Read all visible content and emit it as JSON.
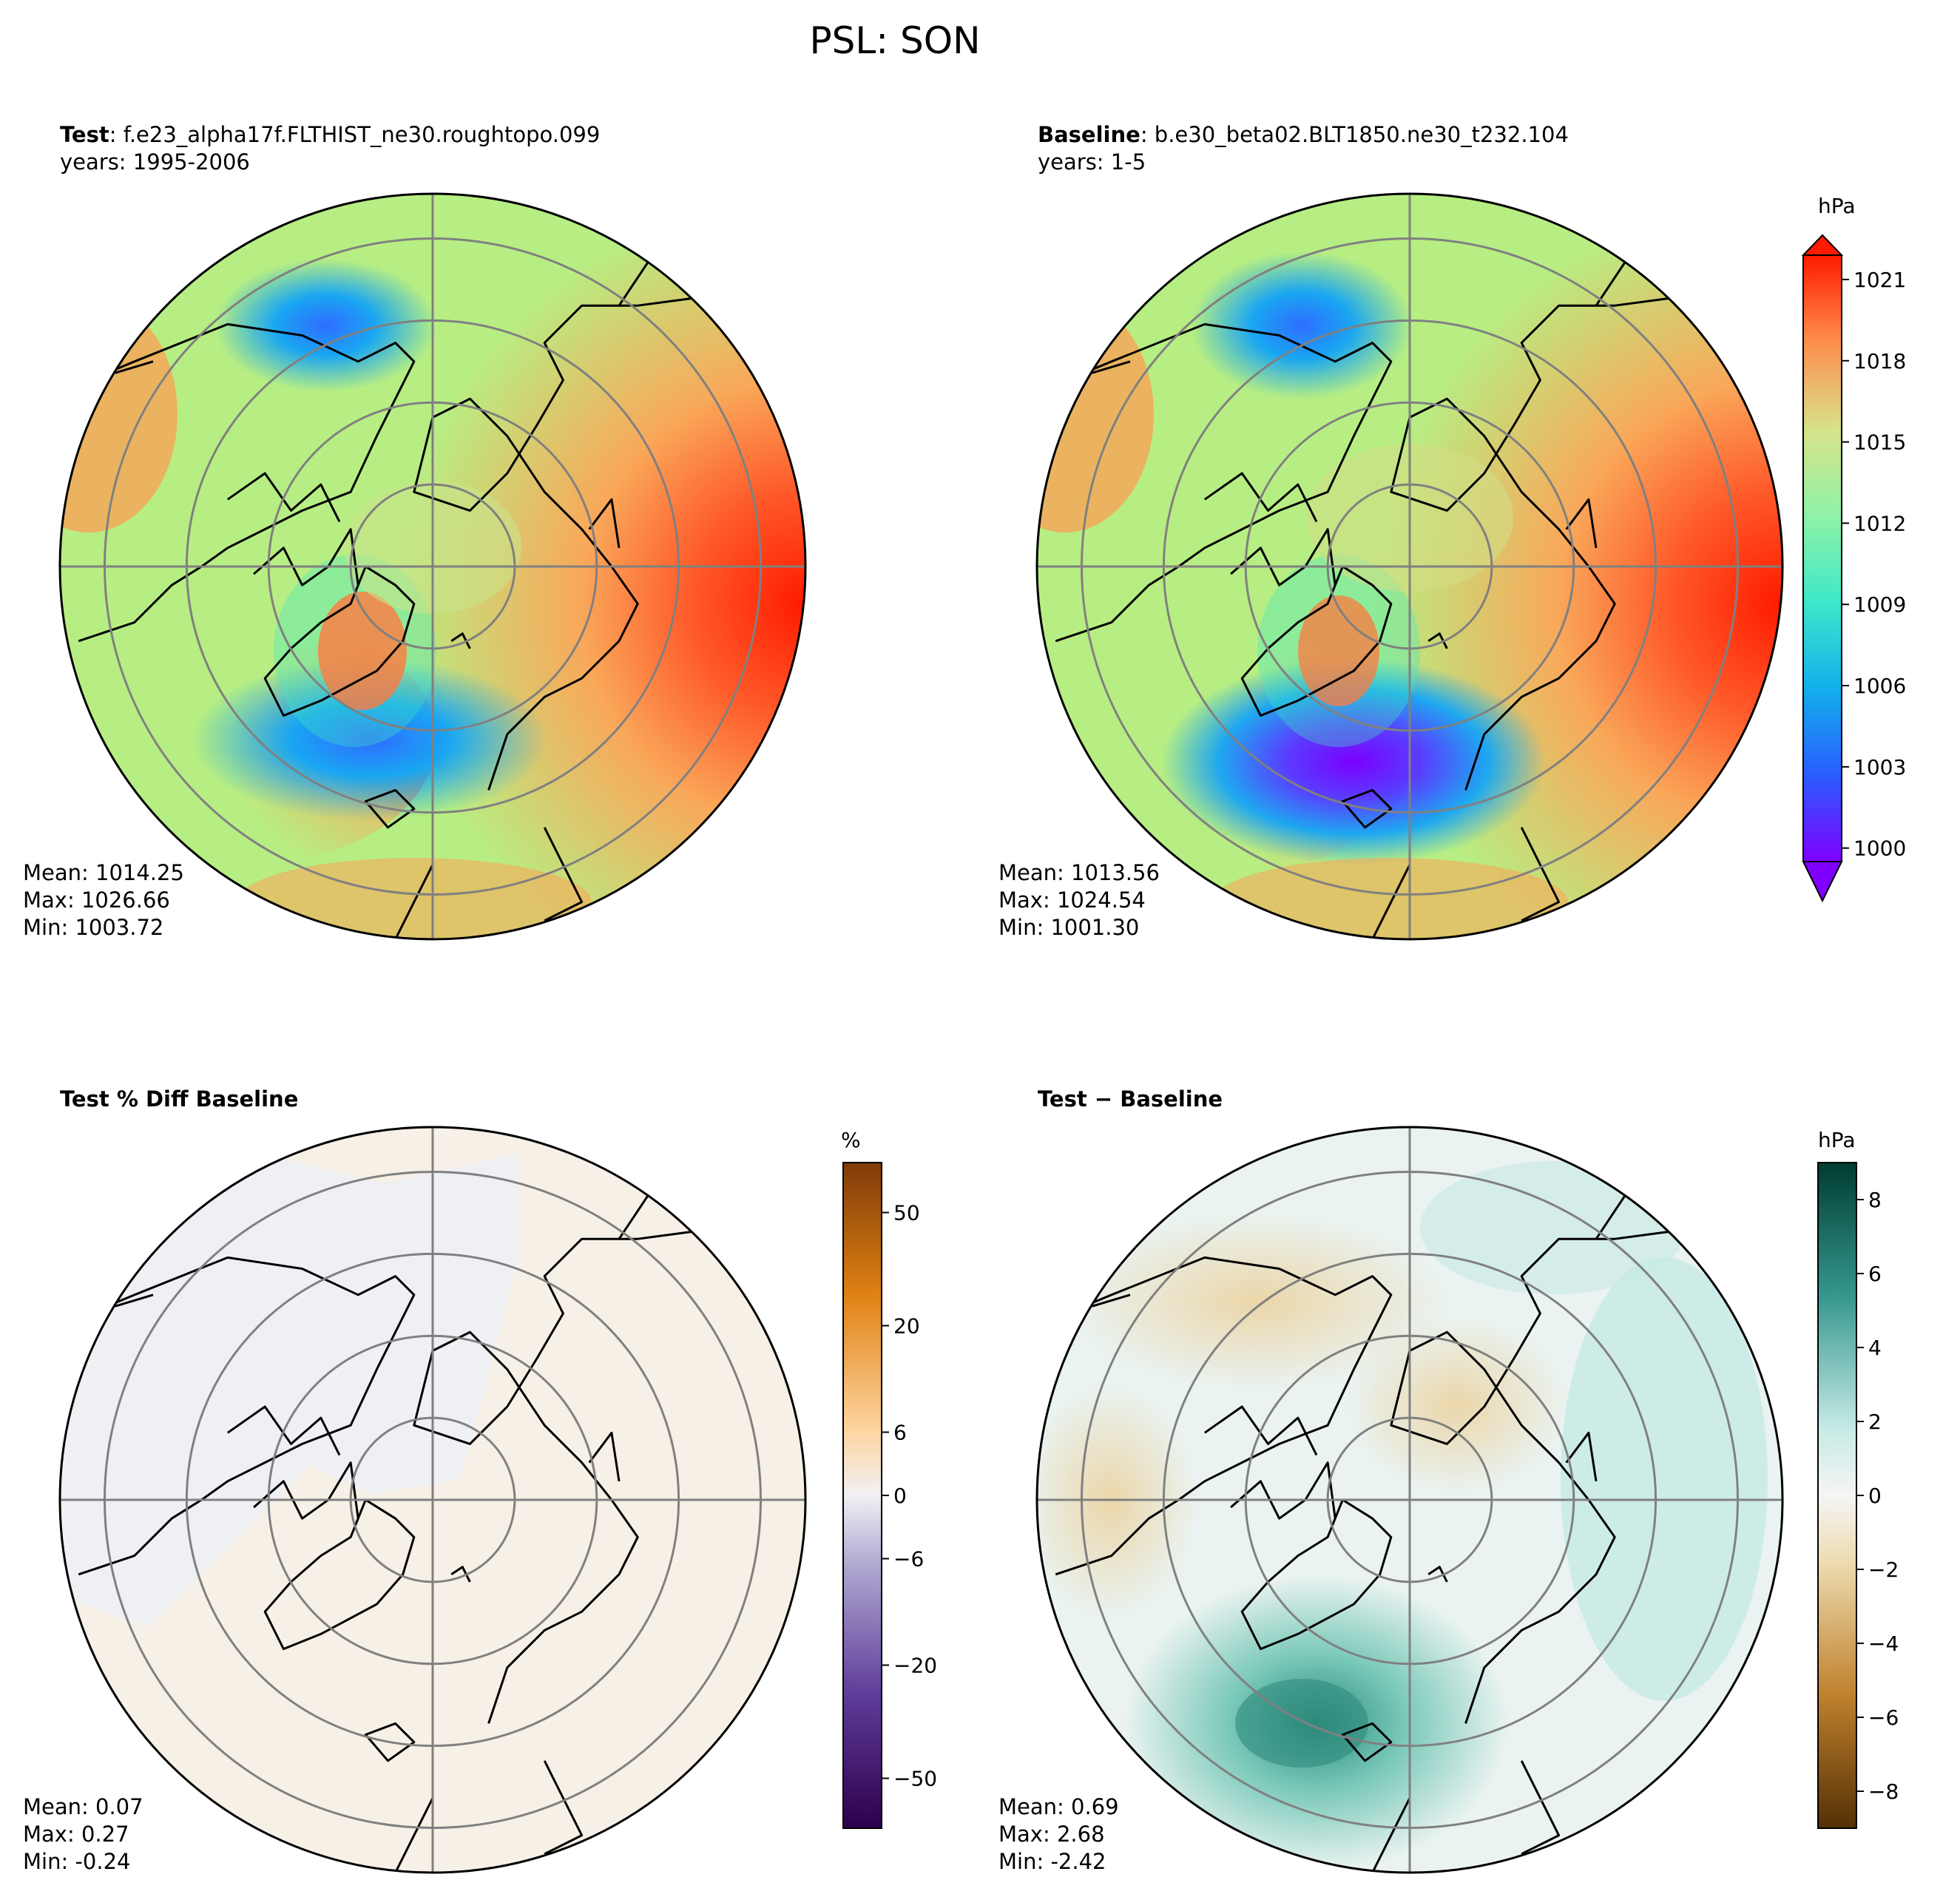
{
  "title": "PSL: SON",
  "panels": [
    {
      "id": "test",
      "title_bold": "Test",
      "title_rest": ": f.e23_alpha17f.FLTHIST_ne30.roughtopo.099",
      "subtitle": "years: 1995-2006",
      "stats": {
        "mean": "Mean: 1014.25",
        "max": "Max: 1026.66",
        "min": "Min: 1003.72"
      }
    },
    {
      "id": "baseline",
      "title_bold": "Baseline",
      "title_rest": ": b.e30_beta02.BLT1850.ne30_t232.104",
      "subtitle": "years: 1-5",
      "stats": {
        "mean": "Mean: 1013.56",
        "max": "Max: 1024.54",
        "min": "Min: 1001.30"
      }
    },
    {
      "id": "pctdiff",
      "title_bold": "Test % Diff Baseline",
      "title_rest": "",
      "subtitle": "",
      "stats": {
        "mean": "Mean:  0.07",
        "max": "Max:  0.27",
        "min": "Min: -0.24"
      }
    },
    {
      "id": "diff",
      "title_bold": "Test − Baseline",
      "title_rest": "",
      "subtitle": "",
      "stats": {
        "mean": "Mean:  0.69",
        "max": "Max:  2.68",
        "min": "Min: -2.42"
      }
    }
  ],
  "colorbars": [
    {
      "id": "abs",
      "unit": "hPa",
      "ticks": [
        "1000",
        "1003",
        "1006",
        "1009",
        "1012",
        "1015",
        "1018",
        "1021"
      ]
    },
    {
      "id": "pct",
      "unit": "%",
      "ticks": [
        "−50",
        "−20",
        "−6",
        "0",
        "6",
        "20",
        "50"
      ]
    },
    {
      "id": "diff",
      "unit": "hPa",
      "ticks": [
        "−8",
        "−6",
        "−4",
        "−2",
        "0",
        "2",
        "4",
        "6",
        "8"
      ]
    }
  ],
  "chart_data": [
    {
      "type": "heatmap",
      "projection": "north-polar-stereographic",
      "title": "Test: f.e23_alpha17f.FLTHIST_ne30.roughtopo.099",
      "subtitle": "years: 1995-2006",
      "variable": "PSL",
      "season": "SON",
      "units": "hPa",
      "mean": 1014.25,
      "max": 1026.66,
      "min": 1003.72,
      "colorscale": {
        "range": [
          1000,
          1021
        ],
        "levels": [
          1000,
          1001,
          1002,
          1003,
          1004,
          1005,
          1006,
          1007,
          1008,
          1009,
          1010,
          1011,
          1012,
          1013,
          1014,
          1015,
          1016,
          1017,
          1018,
          1019,
          1020,
          1021
        ],
        "extend": "both"
      }
    },
    {
      "type": "heatmap",
      "projection": "north-polar-stereographic",
      "title": "Baseline: b.e30_beta02.BLT1850.ne30_t232.104",
      "subtitle": "years: 1-5",
      "variable": "PSL",
      "season": "SON",
      "units": "hPa",
      "mean": 1013.56,
      "max": 1024.54,
      "min": 1001.3,
      "colorscale": {
        "range": [
          1000,
          1021
        ],
        "extend": "both"
      }
    },
    {
      "type": "heatmap",
      "projection": "north-polar-stereographic",
      "title": "Test % Diff Baseline",
      "units": "%",
      "mean": 0.07,
      "max": 0.27,
      "min": -0.24,
      "colorscale": {
        "range": [
          -75,
          75
        ],
        "ticks": [
          -50,
          -20,
          -6,
          0,
          6,
          20,
          50
        ]
      }
    },
    {
      "type": "heatmap",
      "projection": "north-polar-stereographic",
      "title": "Test − Baseline",
      "units": "hPa",
      "mean": 0.69,
      "max": 2.68,
      "min": -2.42,
      "colorscale": {
        "range": [
          -9,
          9
        ],
        "ticks": [
          -8,
          -6,
          -4,
          -2,
          0,
          2,
          4,
          6,
          8
        ]
      }
    }
  ]
}
